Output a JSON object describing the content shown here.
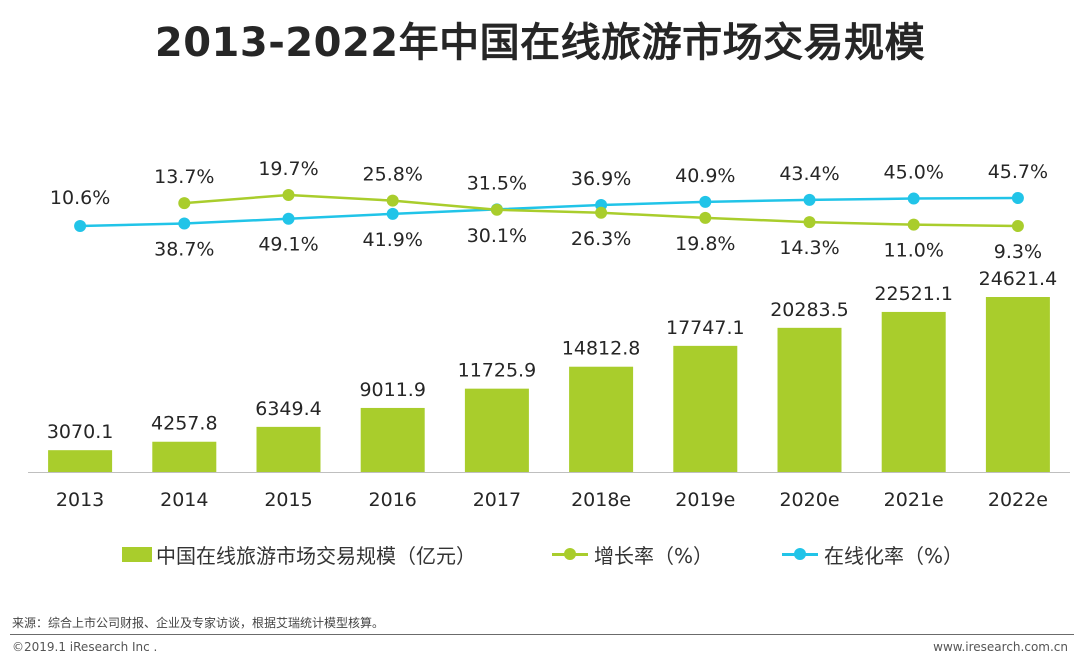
{
  "title": "2013-2022年中国在线旅游市场交易规模",
  "chart_data": {
    "type": "bar+line",
    "title": "2013-2022年中国在线旅游市场交易规模",
    "categories": [
      "2013",
      "2014",
      "2015",
      "2016",
      "2017",
      "2018e",
      "2019e",
      "2020e",
      "2021e",
      "2022e"
    ],
    "series": [
      {
        "name": "中国在线旅游市场交易规模（亿元）",
        "type": "bar",
        "color": "#a9cd2c",
        "values": [
          3070.1,
          4257.8,
          6349.4,
          9011.9,
          11725.9,
          14812.8,
          17747.1,
          20283.5,
          22521.1,
          24621.4
        ],
        "labels": [
          "3070.1",
          "4257.8",
          "6349.4",
          "9011.9",
          "11725.9",
          "14812.8",
          "17747.1",
          "20283.5",
          "22521.1",
          "24621.4"
        ],
        "ylim": [
          0,
          27000
        ]
      },
      {
        "name": "增长率（%）",
        "type": "line",
        "color": "#a9cd2c",
        "values": [
          null,
          38.7,
          49.1,
          41.9,
          30.1,
          26.3,
          19.8,
          14.3,
          11.0,
          9.3
        ],
        "labels": [
          "",
          "38.7%",
          "49.1%",
          "41.9%",
          "30.1%",
          "26.3%",
          "19.8%",
          "14.3%",
          "11.0%",
          "9.3%"
        ]
      },
      {
        "name": "在线化率（%）",
        "type": "line",
        "color": "#21c4e8",
        "values": [
          10.6,
          13.7,
          19.7,
          25.8,
          31.5,
          36.9,
          40.9,
          43.4,
          45.0,
          45.7
        ],
        "labels": [
          "10.6%",
          "13.7%",
          "19.7%",
          "25.8%",
          "31.5%",
          "36.9%",
          "40.9%",
          "43.4%",
          "45.0%",
          "45.7%"
        ]
      }
    ]
  },
  "legend": {
    "bar": "中国在线旅游市场交易规模（亿元）",
    "growth": "增长率（%）",
    "online": "在线化率（%）"
  },
  "source": "来源：综合上市公司财报、企业及专家访谈，根据艾瑞统计模型核算。",
  "copyright": "©2019.1 iResearch Inc .",
  "website": "www.iresearch.com.cn"
}
